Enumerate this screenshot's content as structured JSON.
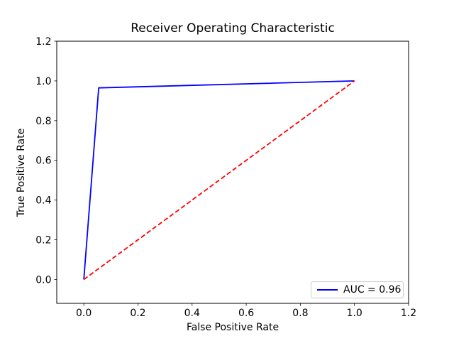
{
  "figure": {
    "background": "#ffffff",
    "frame_color": "#000000",
    "text_color": "#000000"
  },
  "legend": {
    "position": "lower right",
    "entries": [
      {
        "label": "AUC = 0.96",
        "color": "#0000ff",
        "linestyle": "solid"
      }
    ]
  },
  "chart_data": {
    "type": "line",
    "title": "Receiver Operating Characteristic",
    "xlabel": "False Positive Rate",
    "ylabel": "True Positive Rate",
    "xlim": [
      -0.1,
      1.2
    ],
    "ylim": [
      -0.12,
      1.2
    ],
    "xticks": [
      0.0,
      0.2,
      0.4,
      0.6,
      0.8,
      1.0,
      1.2
    ],
    "yticks": [
      0.0,
      0.2,
      0.4,
      0.6,
      0.8,
      1.0,
      1.2
    ],
    "tick_format_decimals": 1,
    "grid": false,
    "auc": 0.96,
    "legend_position": "lower right",
    "series": [
      {
        "name": "roc-curve",
        "label": "AUC = 0.96",
        "color": "#0000ff",
        "linestyle": "solid",
        "linewidth": 1.8,
        "points": [
          [
            0.0,
            0.0
          ],
          [
            0.055,
            0.965
          ],
          [
            1.0,
            1.0
          ]
        ]
      },
      {
        "name": "chance-diagonal",
        "label": null,
        "color": "#ff0000",
        "linestyle": "dashed",
        "linewidth": 1.8,
        "points": [
          [
            0.0,
            0.0
          ],
          [
            1.0,
            1.0
          ]
        ]
      }
    ]
  }
}
